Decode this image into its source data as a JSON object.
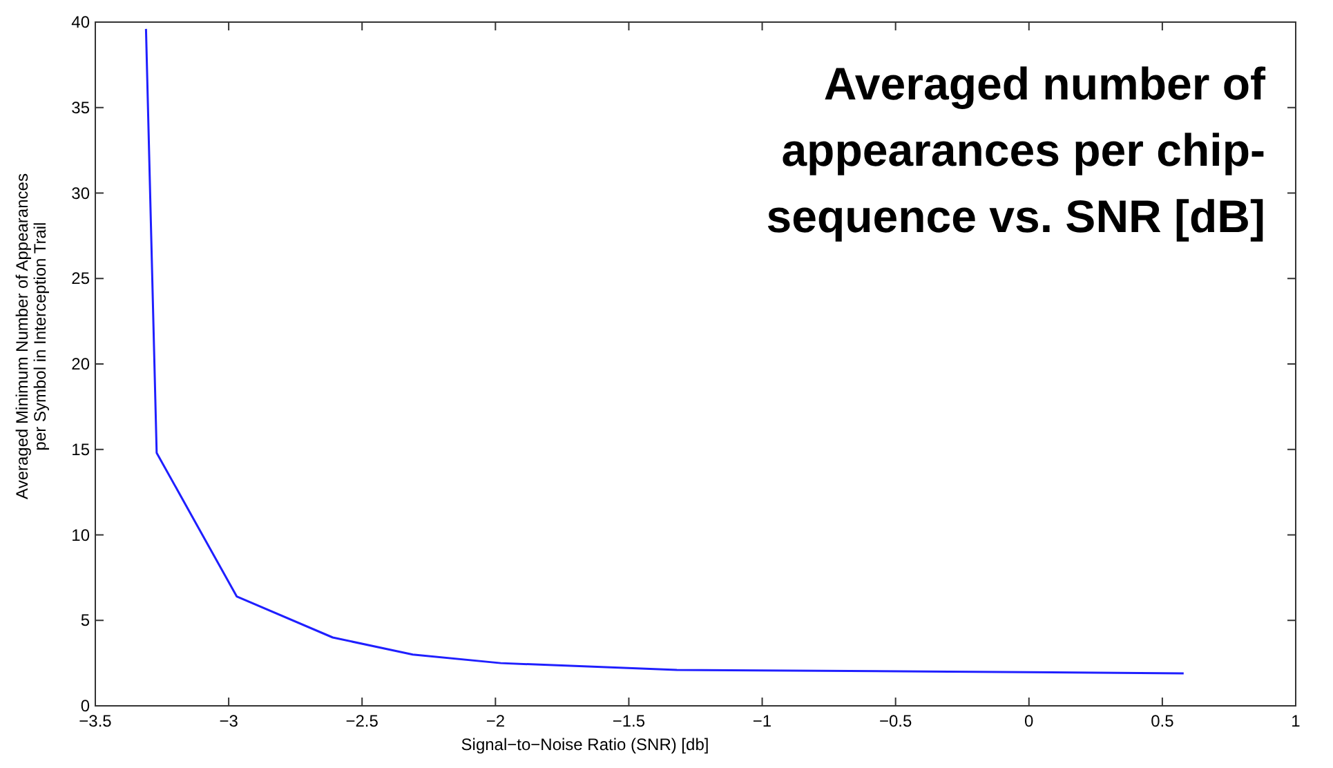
{
  "chart_data": {
    "type": "line",
    "title": "Averaged number of appearances per chip-sequence vs. SNR [dB]",
    "xlabel": "Signal−to−Noise Ratio (SNR) [db]",
    "ylabel": "Averaged Minimum Number of Appearances per Symbol in Interception Trail",
    "x": [
      -3.31,
      -3.27,
      -2.97,
      -2.61,
      -2.31,
      -1.98,
      -1.32,
      -0.3,
      0.58
    ],
    "series": [
      {
        "color": "#1f1fff",
        "values": [
          39.6,
          14.8,
          6.4,
          4.0,
          3.0,
          2.5,
          2.1,
          2.0,
          1.9
        ]
      }
    ],
    "xlim": [
      -3.5,
      1
    ],
    "xticks": [
      -3.5,
      -3,
      -2.5,
      -2,
      -1.5,
      -1,
      -0.5,
      0,
      0.5,
      1
    ],
    "ylim": [
      0,
      40
    ],
    "yticks": [
      0,
      5,
      10,
      15,
      20,
      25,
      30,
      35,
      40
    ],
    "grid": false
  }
}
